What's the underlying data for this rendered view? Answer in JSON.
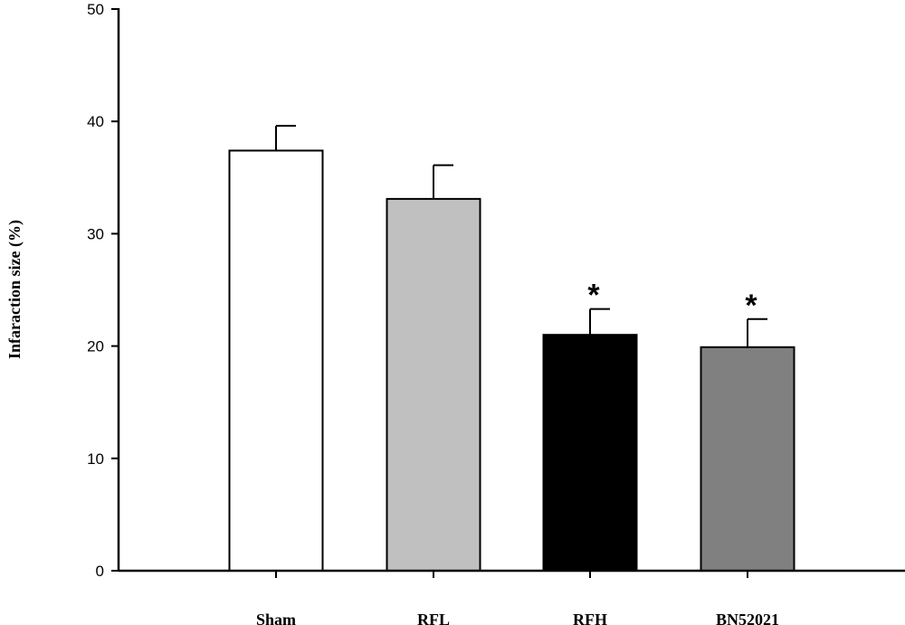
{
  "chart_data": {
    "type": "bar",
    "title": "",
    "xlabel": "",
    "ylabel": "Infaraction size (%)",
    "ylim": [
      0,
      50
    ],
    "yticks": [
      0,
      10,
      20,
      30,
      40,
      50
    ],
    "grid": false,
    "categories": [
      "Sham",
      "RFL",
      "RFH",
      "BN52021"
    ],
    "values": [
      37.4,
      33.1,
      21.0,
      19.9
    ],
    "error_upper": [
      2.2,
      3.0,
      2.3,
      2.5
    ],
    "colors": [
      "#ffffff",
      "#c0c0c0",
      "#000000",
      "#808080"
    ],
    "annotations": [
      "",
      "",
      "*",
      "*"
    ]
  }
}
